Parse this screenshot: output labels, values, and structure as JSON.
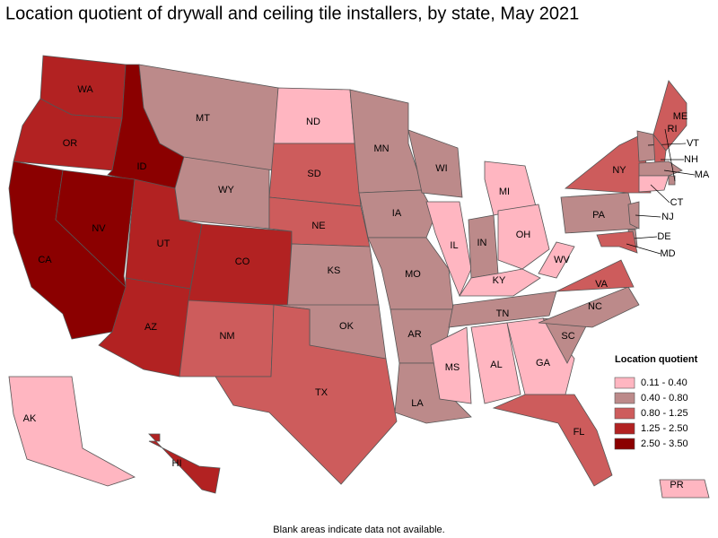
{
  "title": "Location quotient of drywall and ceiling tile installers, by state, May 2021",
  "legend": {
    "title": "Location quotient",
    "items": [
      {
        "label": "0.11 - 0.40",
        "color": "#ffb6c1"
      },
      {
        "label": "0.40 - 0.80",
        "color": "#bc8a8a"
      },
      {
        "label": "0.80 - 1.25",
        "color": "#cd5c5c"
      },
      {
        "label": "1.25 - 2.50",
        "color": "#b22222"
      },
      {
        "label": "2.50 - 3.50",
        "color": "#8b0000"
      }
    ]
  },
  "states": [
    {
      "abbr": "WA",
      "class": 3
    },
    {
      "abbr": "OR",
      "class": 3
    },
    {
      "abbr": "ID",
      "class": 4
    },
    {
      "abbr": "CA",
      "class": 4
    },
    {
      "abbr": "NV",
      "class": 4
    },
    {
      "abbr": "UT",
      "class": 3
    },
    {
      "abbr": "AZ",
      "class": 3
    },
    {
      "abbr": "CO",
      "class": 3
    },
    {
      "abbr": "NM",
      "class": 2
    },
    {
      "abbr": "WY",
      "class": 1
    },
    {
      "abbr": "MT",
      "class": 1
    },
    {
      "abbr": "ND",
      "class": 0
    },
    {
      "abbr": "SD",
      "class": 2
    },
    {
      "abbr": "NE",
      "class": 2
    },
    {
      "abbr": "KS",
      "class": 1
    },
    {
      "abbr": "OK",
      "class": 1
    },
    {
      "abbr": "TX",
      "class": 2
    },
    {
      "abbr": "MN",
      "class": 1
    },
    {
      "abbr": "IA",
      "class": 1
    },
    {
      "abbr": "MO",
      "class": 1
    },
    {
      "abbr": "AR",
      "class": 1
    },
    {
      "abbr": "LA",
      "class": 1
    },
    {
      "abbr": "WI",
      "class": 1
    },
    {
      "abbr": "IL",
      "class": 0
    },
    {
      "abbr": "IN",
      "class": 1
    },
    {
      "abbr": "MI",
      "class": 0
    },
    {
      "abbr": "OH",
      "class": 0
    },
    {
      "abbr": "KY",
      "class": 0
    },
    {
      "abbr": "TN",
      "class": 1
    },
    {
      "abbr": "MS",
      "class": 0
    },
    {
      "abbr": "AL",
      "class": 0
    },
    {
      "abbr": "GA",
      "class": 0
    },
    {
      "abbr": "FL",
      "class": 2
    },
    {
      "abbr": "SC",
      "class": 1
    },
    {
      "abbr": "NC",
      "class": 1
    },
    {
      "abbr": "VA",
      "class": 2
    },
    {
      "abbr": "WV",
      "class": 0
    },
    {
      "abbr": "PA",
      "class": 1
    },
    {
      "abbr": "NY",
      "class": 2
    },
    {
      "abbr": "ME",
      "class": 2
    },
    {
      "abbr": "VT",
      "class": 1
    },
    {
      "abbr": "NH",
      "class": 2
    },
    {
      "abbr": "MA",
      "class": 1
    },
    {
      "abbr": "RI",
      "class": 1
    },
    {
      "abbr": "CT",
      "class": 0
    },
    {
      "abbr": "NJ",
      "class": 1
    },
    {
      "abbr": "DE",
      "class": 1
    },
    {
      "abbr": "MD",
      "class": 2
    },
    {
      "abbr": "AK",
      "class": 0
    },
    {
      "abbr": "HI",
      "class": 3
    },
    {
      "abbr": "PR",
      "class": 0
    }
  ],
  "footnote": "Blank areas indicate data not available."
}
